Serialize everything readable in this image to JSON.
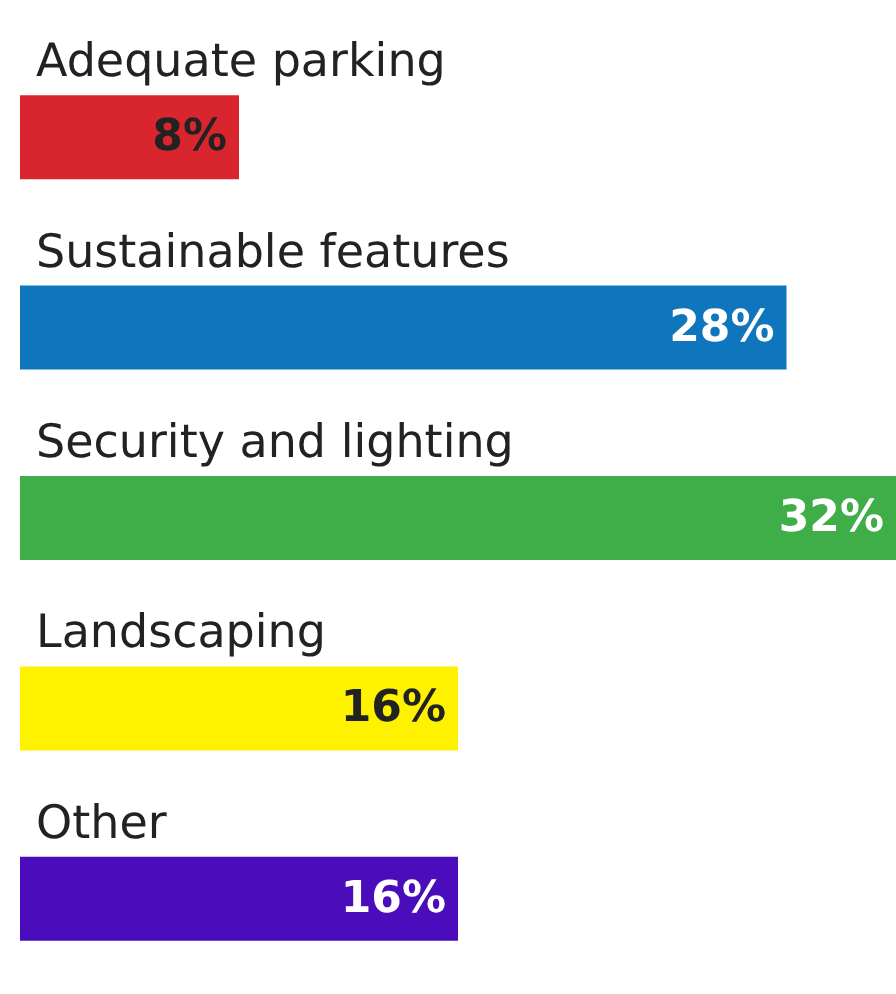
{
  "chart_data": {
    "type": "bar",
    "orientation": "horizontal",
    "categories": [
      "Adequate parking",
      "Sustainable features",
      "Security and lighting",
      "Landscaping",
      "Other"
    ],
    "values": [
      8,
      28,
      32,
      16,
      16
    ],
    "value_labels": [
      "8%",
      "28%",
      "32%",
      "16%",
      "16%"
    ],
    "colors": [
      "#d9262e",
      "#0f75bd",
      "#3fae49",
      "#fff200",
      "#4b0dbb"
    ]
  }
}
